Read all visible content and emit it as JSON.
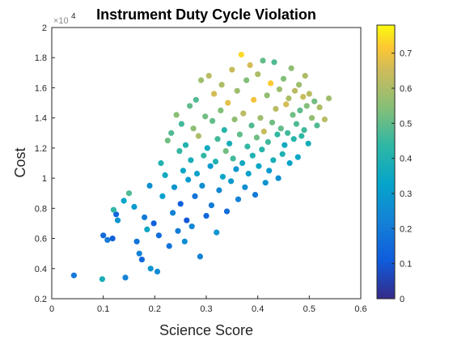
{
  "chart_data": {
    "type": "scatter",
    "title": "Instrument Duty Cycle Violation",
    "xlabel": "Science Score",
    "ylabel": "Cost",
    "y_exponent_label": "×10",
    "y_exponent_power": "4",
    "xlim": [
      0,
      0.6
    ],
    "ylim": [
      2000,
      20000
    ],
    "x_ticks": [
      "0",
      "0.1",
      "0.2",
      "0.3",
      "0.4",
      "0.5",
      "0.6"
    ],
    "y_ticks": [
      "0.2",
      "0.4",
      "0.6",
      "0.8",
      "1",
      "1.2",
      "1.4",
      "1.6",
      "1.8",
      "2"
    ],
    "colorbar": {
      "range": [
        0,
        0.78
      ],
      "ticks": [
        "0",
        "0.1",
        "0.2",
        "0.3",
        "0.4",
        "0.5",
        "0.6",
        "0.7"
      ],
      "colormap": "parula"
    },
    "grid": false,
    "legend": "none",
    "points": [
      [
        0.043,
        3550,
        0.2
      ],
      [
        0.098,
        3300,
        0.38
      ],
      [
        0.143,
        3400,
        0.22
      ],
      [
        0.1,
        6200,
        0.15
      ],
      [
        0.108,
        5900,
        0.2
      ],
      [
        0.118,
        6000,
        0.12
      ],
      [
        0.125,
        7600,
        0.14
      ],
      [
        0.128,
        7200,
        0.28
      ],
      [
        0.12,
        7900,
        0.44
      ],
      [
        0.14,
        8500,
        0.33
      ],
      [
        0.15,
        9000,
        0.48
      ],
      [
        0.16,
        8100,
        0.3
      ],
      [
        0.165,
        5800,
        0.18
      ],
      [
        0.17,
        5000,
        0.22
      ],
      [
        0.175,
        4600,
        0.14
      ],
      [
        0.18,
        7400,
        0.2
      ],
      [
        0.185,
        6600,
        0.35
      ],
      [
        0.19,
        9500,
        0.26
      ],
      [
        0.192,
        4000,
        0.28
      ],
      [
        0.198,
        7000,
        0.12
      ],
      [
        0.205,
        3800,
        0.25
      ],
      [
        0.208,
        6200,
        0.16
      ],
      [
        0.212,
        11000,
        0.4
      ],
      [
        0.215,
        8800,
        0.32
      ],
      [
        0.22,
        10200,
        0.36
      ],
      [
        0.225,
        12500,
        0.52
      ],
      [
        0.228,
        5500,
        0.18
      ],
      [
        0.232,
        13000,
        0.48
      ],
      [
        0.235,
        7700,
        0.22
      ],
      [
        0.238,
        9400,
        0.28
      ],
      [
        0.242,
        14200,
        0.55
      ],
      [
        0.245,
        6500,
        0.2
      ],
      [
        0.248,
        11800,
        0.44
      ],
      [
        0.25,
        8300,
        0.12
      ],
      [
        0.252,
        13600,
        0.46
      ],
      [
        0.255,
        10500,
        0.34
      ],
      [
        0.258,
        5800,
        0.26
      ],
      [
        0.26,
        12200,
        0.4
      ],
      [
        0.262,
        7200,
        0.1
      ],
      [
        0.265,
        9900,
        0.3
      ],
      [
        0.268,
        14800,
        0.5
      ],
      [
        0.27,
        11200,
        0.38
      ],
      [
        0.272,
        6800,
        0.24
      ],
      [
        0.275,
        13300,
        0.56
      ],
      [
        0.278,
        8800,
        0.18
      ],
      [
        0.28,
        15200,
        0.48
      ],
      [
        0.282,
        10300,
        0.32
      ],
      [
        0.285,
        12800,
        0.6
      ],
      [
        0.288,
        4800,
        0.22
      ],
      [
        0.29,
        16500,
        0.58
      ],
      [
        0.292,
        9500,
        0.26
      ],
      [
        0.295,
        11500,
        0.44
      ],
      [
        0.298,
        14100,
        0.52
      ],
      [
        0.3,
        7500,
        0.14
      ],
      [
        0.302,
        12000,
        0.36
      ],
      [
        0.305,
        16800,
        0.62
      ],
      [
        0.308,
        10800,
        0.3
      ],
      [
        0.31,
        8200,
        0.2
      ],
      [
        0.312,
        13800,
        0.5
      ],
      [
        0.315,
        15600,
        0.66
      ],
      [
        0.318,
        11100,
        0.4
      ],
      [
        0.32,
        6400,
        0.28
      ],
      [
        0.322,
        12600,
        0.46
      ],
      [
        0.325,
        9200,
        0.24
      ],
      [
        0.328,
        14500,
        0.54
      ],
      [
        0.33,
        16200,
        0.6
      ],
      [
        0.332,
        10100,
        0.34
      ],
      [
        0.335,
        13200,
        0.42
      ],
      [
        0.338,
        11800,
        0.52
      ],
      [
        0.34,
        7800,
        0.16
      ],
      [
        0.342,
        15000,
        0.68
      ],
      [
        0.345,
        12300,
        0.38
      ],
      [
        0.348,
        9800,
        0.3
      ],
      [
        0.35,
        17200,
        0.64
      ],
      [
        0.352,
        11300,
        0.46
      ],
      [
        0.355,
        13900,
        0.56
      ],
      [
        0.358,
        10600,
        0.28
      ],
      [
        0.36,
        15800,
        0.58
      ],
      [
        0.362,
        8600,
        0.22
      ],
      [
        0.365,
        12900,
        0.5
      ],
      [
        0.368,
        18200,
        0.74
      ],
      [
        0.37,
        11000,
        0.36
      ],
      [
        0.372,
        14300,
        0.62
      ],
      [
        0.375,
        9400,
        0.26
      ],
      [
        0.378,
        16500,
        0.54
      ],
      [
        0.38,
        12100,
        0.44
      ],
      [
        0.382,
        10300,
        0.32
      ],
      [
        0.385,
        17500,
        0.66
      ],
      [
        0.388,
        13500,
        0.48
      ],
      [
        0.39,
        11500,
        0.4
      ],
      [
        0.392,
        15200,
        0.7
      ],
      [
        0.395,
        8900,
        0.2
      ],
      [
        0.398,
        12700,
        0.52
      ],
      [
        0.4,
        16900,
        0.6
      ],
      [
        0.402,
        10800,
        0.34
      ],
      [
        0.405,
        14000,
        0.58
      ],
      [
        0.408,
        11900,
        0.42
      ],
      [
        0.41,
        17800,
        0.5
      ],
      [
        0.412,
        13100,
        0.64
      ],
      [
        0.415,
        9700,
        0.28
      ],
      [
        0.418,
        15500,
        0.56
      ],
      [
        0.42,
        12400,
        0.46
      ],
      [
        0.422,
        10500,
        0.3
      ],
      [
        0.425,
        16300,
        0.72
      ],
      [
        0.428,
        13700,
        0.52
      ],
      [
        0.43,
        11200,
        0.38
      ],
      [
        0.432,
        17700,
        0.48
      ],
      [
        0.435,
        14600,
        0.62
      ],
      [
        0.438,
        12900,
        0.44
      ],
      [
        0.44,
        10000,
        0.26
      ],
      [
        0.442,
        15900,
        0.58
      ],
      [
        0.445,
        13300,
        0.5
      ],
      [
        0.448,
        11600,
        0.4
      ],
      [
        0.45,
        16600,
        0.54
      ],
      [
        0.452,
        12200,
        0.36
      ],
      [
        0.455,
        14900,
        0.66
      ],
      [
        0.458,
        13000,
        0.46
      ],
      [
        0.46,
        15300,
        0.6
      ],
      [
        0.462,
        11000,
        0.32
      ],
      [
        0.465,
        17300,
        0.56
      ],
      [
        0.468,
        14200,
        0.52
      ],
      [
        0.47,
        12600,
        0.42
      ],
      [
        0.472,
        15800,
        0.62
      ],
      [
        0.475,
        13600,
        0.48
      ],
      [
        0.478,
        11400,
        0.34
      ],
      [
        0.48,
        16200,
        0.58
      ],
      [
        0.482,
        14500,
        0.5
      ],
      [
        0.485,
        12800,
        0.44
      ],
      [
        0.488,
        15400,
        0.64
      ],
      [
        0.49,
        13200,
        0.46
      ],
      [
        0.492,
        16800,
        0.6
      ],
      [
        0.495,
        14800,
        0.54
      ],
      [
        0.498,
        12300,
        0.38
      ],
      [
        0.5,
        15600,
        0.62
      ],
      [
        0.505,
        14000,
        0.56
      ],
      [
        0.51,
        15100,
        0.52
      ],
      [
        0.515,
        13500,
        0.48
      ],
      [
        0.52,
        14700,
        0.6
      ],
      [
        0.53,
        13900,
        0.62
      ],
      [
        0.538,
        15300,
        0.58
      ]
    ]
  }
}
